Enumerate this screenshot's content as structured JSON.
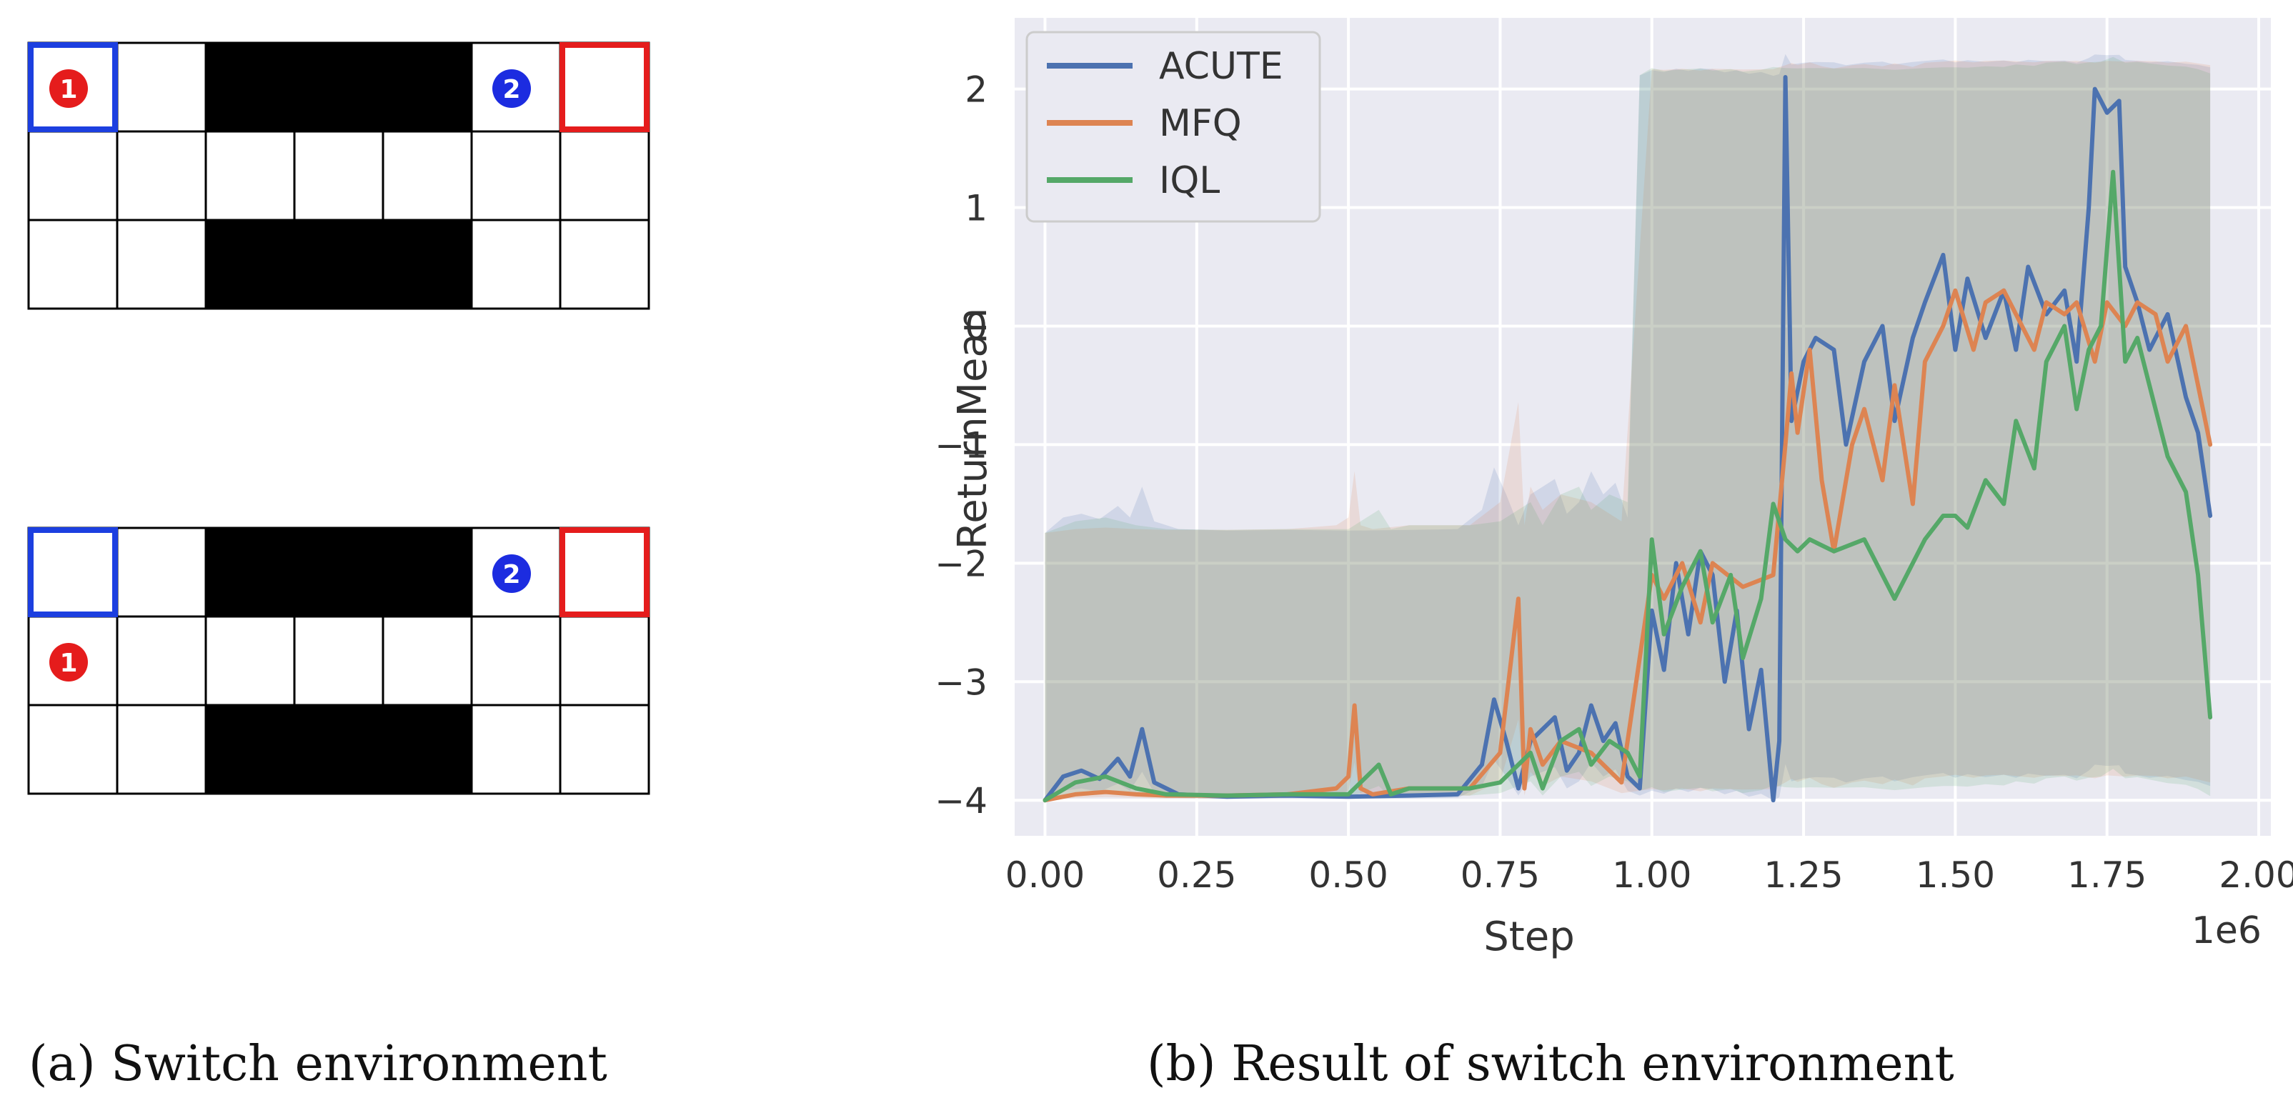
{
  "environment": {
    "caption": "(a) Switch environment",
    "rows": 3,
    "cols": 7,
    "wall_color": "#000000",
    "grid_line_color": "#000000",
    "cell_color": "#ffffff",
    "walls": [
      [
        0,
        2
      ],
      [
        0,
        3
      ],
      [
        0,
        4
      ],
      [
        2,
        2
      ],
      [
        2,
        3
      ],
      [
        2,
        4
      ]
    ],
    "goals": [
      {
        "name": "agent-1-goal",
        "row": 0,
        "col": 0,
        "color": "#1c3fe0"
      },
      {
        "name": "agent-2-goal",
        "row": 0,
        "col": 6,
        "color": "#e51c1c"
      }
    ],
    "panels": [
      {
        "name": "start-state",
        "agents": [
          {
            "label": "1",
            "row": 0,
            "col": 0,
            "color": "#e51c1c"
          },
          {
            "label": "2",
            "row": 0,
            "col": 5,
            "color": "#1c2ce0"
          }
        ]
      },
      {
        "name": "later-state",
        "agents": [
          {
            "label": "1",
            "row": 1,
            "col": 0,
            "color": "#e51c1c"
          },
          {
            "label": "2",
            "row": 0,
            "col": 5,
            "color": "#1c2ce0"
          }
        ]
      }
    ]
  },
  "result_caption": "(b) Result of switch environment",
  "chart_data": {
    "type": "line",
    "title": "",
    "xlabel": "Step",
    "ylabel": "ReturnMean",
    "x_offset_label": "1e6",
    "xlim": [
      -0.05,
      2.02
    ],
    "ylim": [
      -4.3,
      2.6
    ],
    "xticks": [
      0.0,
      0.25,
      0.5,
      0.75,
      1.0,
      1.25,
      1.5,
      1.75,
      2.0
    ],
    "xtick_labels": [
      "0.00",
      "0.25",
      "0.50",
      "0.75",
      "1.00",
      "1.25",
      "1.50",
      "1.75",
      "2.00"
    ],
    "yticks": [
      -4,
      -3,
      -2,
      -1,
      0,
      1,
      2
    ],
    "ytick_labels": [
      "−4",
      "−3",
      "−2",
      "−1",
      "0",
      "1",
      "2"
    ],
    "grid": true,
    "background": "#eaeaf2",
    "legend_position": "top-left",
    "series": [
      {
        "name": "ACUTE",
        "color": "#4c72b0",
        "x": [
          0.0,
          0.03,
          0.06,
          0.09,
          0.12,
          0.14,
          0.16,
          0.18,
          0.22,
          0.3,
          0.4,
          0.5,
          0.6,
          0.68,
          0.72,
          0.74,
          0.76,
          0.78,
          0.8,
          0.84,
          0.86,
          0.88,
          0.9,
          0.92,
          0.94,
          0.96,
          0.98,
          1.0,
          1.02,
          1.04,
          1.06,
          1.08,
          1.1,
          1.12,
          1.14,
          1.16,
          1.18,
          1.2,
          1.21,
          1.22,
          1.23,
          1.25,
          1.27,
          1.3,
          1.32,
          1.35,
          1.38,
          1.4,
          1.43,
          1.45,
          1.48,
          1.5,
          1.52,
          1.55,
          1.58,
          1.6,
          1.62,
          1.65,
          1.68,
          1.7,
          1.72,
          1.73,
          1.75,
          1.77,
          1.78,
          1.8,
          1.82,
          1.85,
          1.88,
          1.9,
          1.92
        ],
        "y": [
          -4.0,
          -3.8,
          -3.75,
          -3.82,
          -3.65,
          -3.8,
          -3.4,
          -3.85,
          -3.95,
          -3.97,
          -3.96,
          -3.97,
          -3.96,
          -3.95,
          -3.7,
          -3.15,
          -3.5,
          -3.9,
          -3.5,
          -3.3,
          -3.75,
          -3.6,
          -3.2,
          -3.5,
          -3.35,
          -3.8,
          -3.9,
          -2.4,
          -2.9,
          -2.0,
          -2.6,
          -1.9,
          -2.1,
          -3.0,
          -2.4,
          -3.4,
          -2.9,
          -4.0,
          -3.5,
          2.1,
          -0.8,
          -0.3,
          -0.1,
          -0.2,
          -1.0,
          -0.3,
          0.0,
          -0.8,
          -0.1,
          0.2,
          0.6,
          -0.2,
          0.4,
          -0.1,
          0.3,
          -0.2,
          0.5,
          0.1,
          0.3,
          -0.3,
          1.0,
          2.0,
          1.8,
          1.9,
          0.5,
          0.2,
          -0.2,
          0.1,
          -0.6,
          -0.9,
          -1.6
        ]
      },
      {
        "name": "MFQ",
        "color": "#dd8452",
        "x": [
          0.0,
          0.05,
          0.1,
          0.15,
          0.2,
          0.3,
          0.4,
          0.48,
          0.5,
          0.51,
          0.52,
          0.54,
          0.6,
          0.7,
          0.75,
          0.78,
          0.79,
          0.8,
          0.82,
          0.85,
          0.9,
          0.95,
          1.0,
          1.02,
          1.05,
          1.08,
          1.1,
          1.15,
          1.2,
          1.22,
          1.23,
          1.24,
          1.26,
          1.28,
          1.3,
          1.33,
          1.35,
          1.38,
          1.4,
          1.43,
          1.45,
          1.48,
          1.5,
          1.53,
          1.55,
          1.58,
          1.6,
          1.63,
          1.65,
          1.68,
          1.7,
          1.73,
          1.75,
          1.78,
          1.8,
          1.83,
          1.85,
          1.88,
          1.9,
          1.92
        ],
        "y": [
          -4.0,
          -3.95,
          -3.93,
          -3.95,
          -3.96,
          -3.96,
          -3.95,
          -3.9,
          -3.8,
          -3.2,
          -3.9,
          -3.95,
          -3.9,
          -3.9,
          -3.6,
          -2.3,
          -3.9,
          -3.4,
          -3.7,
          -3.5,
          -3.6,
          -3.85,
          -2.1,
          -2.3,
          -2.0,
          -2.5,
          -2.0,
          -2.2,
          -2.1,
          -1.0,
          -0.4,
          -0.9,
          -0.2,
          -1.3,
          -1.9,
          -1.0,
          -0.7,
          -1.3,
          -0.5,
          -1.5,
          -0.3,
          0.0,
          0.3,
          -0.2,
          0.2,
          0.3,
          0.1,
          -0.2,
          0.2,
          0.1,
          0.2,
          -0.3,
          0.2,
          0.0,
          0.2,
          0.1,
          -0.3,
          0.0,
          -0.5,
          -1.0
        ]
      },
      {
        "name": "IQL",
        "color": "#55a868",
        "x": [
          0.0,
          0.05,
          0.1,
          0.15,
          0.2,
          0.3,
          0.4,
          0.5,
          0.55,
          0.57,
          0.6,
          0.7,
          0.75,
          0.8,
          0.82,
          0.85,
          0.88,
          0.9,
          0.93,
          0.96,
          0.98,
          1.0,
          1.02,
          1.05,
          1.08,
          1.1,
          1.13,
          1.15,
          1.18,
          1.2,
          1.22,
          1.24,
          1.26,
          1.3,
          1.35,
          1.4,
          1.45,
          1.48,
          1.5,
          1.52,
          1.55,
          1.58,
          1.6,
          1.63,
          1.65,
          1.68,
          1.7,
          1.72,
          1.74,
          1.76,
          1.78,
          1.8,
          1.82,
          1.85,
          1.88,
          1.9,
          1.92
        ],
        "y": [
          -4.0,
          -3.85,
          -3.8,
          -3.9,
          -3.95,
          -3.96,
          -3.95,
          -3.95,
          -3.7,
          -3.95,
          -3.9,
          -3.9,
          -3.85,
          -3.6,
          -3.9,
          -3.5,
          -3.4,
          -3.7,
          -3.5,
          -3.6,
          -3.8,
          -1.8,
          -2.6,
          -2.2,
          -1.9,
          -2.5,
          -2.1,
          -2.8,
          -2.3,
          -1.5,
          -1.8,
          -1.9,
          -1.8,
          -1.9,
          -1.8,
          -2.3,
          -1.8,
          -1.6,
          -1.6,
          -1.7,
          -1.3,
          -1.5,
          -0.8,
          -1.2,
          -0.3,
          0.0,
          -0.7,
          -0.2,
          0.0,
          1.3,
          -0.3,
          -0.1,
          -0.5,
          -1.1,
          -1.4,
          -2.1,
          -3.3
        ]
      }
    ]
  }
}
